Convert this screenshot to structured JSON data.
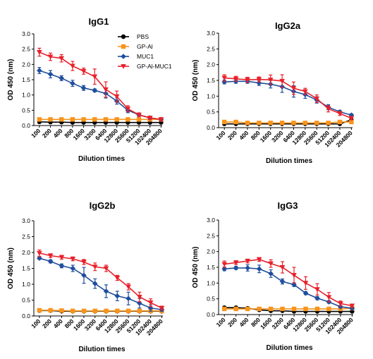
{
  "legend": {
    "entries": [
      {
        "label": "PBS",
        "color": "#000000",
        "marker": "circle"
      },
      {
        "label": "GP-Al",
        "color": "#f7941d",
        "marker": "square"
      },
      {
        "label": "MUC1",
        "color": "#1f4e9c",
        "marker": "diamond"
      },
      {
        "label": "GP-Al-MUC1",
        "color": "#e8202a",
        "marker": "triangle-down"
      }
    ]
  },
  "chart_data": [
    {
      "type": "line",
      "title": "IgG1",
      "xlabel": "Dilution times",
      "ylabel": "OD 450 (nm)",
      "ylim": [
        0,
        3.0
      ],
      "yticks": [
        "0.0",
        "0.5",
        "1.0",
        "1.5",
        "2.0",
        "2.5",
        "3.0"
      ],
      "categories": [
        "100",
        "200",
        "400",
        "800",
        "1600",
        "3200",
        "6400",
        "12800",
        "25600",
        "51200",
        "102400",
        "204800"
      ],
      "legend_position": "top-right",
      "series": [
        {
          "name": "PBS",
          "color": "#000000",
          "marker": "circle",
          "values": [
            0.12,
            0.11,
            0.11,
            0.1,
            0.1,
            0.1,
            0.1,
            0.1,
            0.1,
            0.1,
            0.1,
            0.1
          ],
          "errors": [
            0.02,
            0.02,
            0.02,
            0.02,
            0.02,
            0.02,
            0.02,
            0.02,
            0.02,
            0.02,
            0.02,
            0.02
          ]
        },
        {
          "name": "GP-Al",
          "color": "#f7941d",
          "marker": "square",
          "values": [
            0.2,
            0.2,
            0.2,
            0.2,
            0.2,
            0.2,
            0.2,
            0.2,
            0.2,
            0.2,
            0.2,
            0.2
          ],
          "errors": [
            0.03,
            0.03,
            0.03,
            0.03,
            0.03,
            0.03,
            0.03,
            0.03,
            0.03,
            0.03,
            0.03,
            0.03
          ]
        },
        {
          "name": "MUC1",
          "color": "#1f4e9c",
          "marker": "diamond",
          "values": [
            1.8,
            1.68,
            1.55,
            1.38,
            1.23,
            1.15,
            1.05,
            0.8,
            0.5,
            0.35,
            0.25,
            0.2
          ],
          "errors": [
            0.1,
            0.12,
            0.08,
            0.1,
            0.08,
            0.05,
            0.15,
            0.1,
            0.08,
            0.06,
            0.05,
            0.04
          ]
        },
        {
          "name": "GP-Al-MUC1",
          "color": "#e8202a",
          "marker": "triangle-down",
          "values": [
            2.4,
            2.25,
            2.2,
            1.95,
            1.78,
            1.6,
            1.18,
            0.95,
            0.55,
            0.35,
            0.25,
            0.2
          ],
          "errors": [
            0.13,
            0.12,
            0.12,
            0.15,
            0.1,
            0.25,
            0.25,
            0.18,
            0.1,
            0.06,
            0.05,
            0.04
          ]
        }
      ]
    },
    {
      "type": "line",
      "title": "IgG2a",
      "xlabel": "Dilution times",
      "ylabel": "OD 450 (nm)",
      "ylim": [
        0,
        3.0
      ],
      "yticks": [
        "0.0",
        "0.5",
        "1.0",
        "1.5",
        "2.0",
        "2.5",
        "3.0"
      ],
      "categories": [
        "100",
        "200",
        "400",
        "800",
        "1600",
        "3200",
        "6400",
        "12800",
        "25600",
        "51200",
        "102400",
        "204800"
      ],
      "series": [
        {
          "name": "PBS",
          "color": "#000000",
          "marker": "circle",
          "values": [
            0.12,
            0.12,
            0.12,
            0.12,
            0.12,
            0.12,
            0.12,
            0.12,
            0.12,
            0.12,
            0.12,
            0.25
          ],
          "errors": [
            0.02,
            0.02,
            0.02,
            0.02,
            0.02,
            0.02,
            0.02,
            0.02,
            0.02,
            0.02,
            0.02,
            0.03
          ]
        },
        {
          "name": "GP-Al",
          "color": "#f7941d",
          "marker": "square",
          "values": [
            0.18,
            0.18,
            0.15,
            0.15,
            0.15,
            0.15,
            0.15,
            0.15,
            0.15,
            0.15,
            0.18,
            0.18
          ],
          "errors": [
            0.04,
            0.04,
            0.04,
            0.04,
            0.04,
            0.04,
            0.04,
            0.04,
            0.04,
            0.04,
            0.04,
            0.04
          ]
        },
        {
          "name": "MUC1",
          "color": "#1f4e9c",
          "marker": "diamond",
          "values": [
            1.45,
            1.47,
            1.47,
            1.42,
            1.38,
            1.3,
            1.15,
            1.05,
            0.88,
            0.65,
            0.5,
            0.4
          ],
          "errors": [
            0.06,
            0.06,
            0.06,
            0.08,
            0.12,
            0.18,
            0.18,
            0.12,
            0.1,
            0.08,
            0.05,
            0.04
          ]
        },
        {
          "name": "GP-Al-MUC1",
          "color": "#e8202a",
          "marker": "triangle-down",
          "values": [
            1.58,
            1.55,
            1.52,
            1.53,
            1.52,
            1.48,
            1.25,
            1.15,
            0.92,
            0.6,
            0.45,
            0.3
          ],
          "errors": [
            0.1,
            0.08,
            0.08,
            0.08,
            0.15,
            0.2,
            0.2,
            0.1,
            0.12,
            0.1,
            0.06,
            0.05
          ]
        }
      ]
    },
    {
      "type": "line",
      "title": "IgG2b",
      "xlabel": "Dilution times",
      "ylabel": "OD 450 (nm)",
      "ylim": [
        0,
        3.0
      ],
      "yticks": [
        "0.0",
        "0.5",
        "1.0",
        "1.5",
        "2.0",
        "2.5",
        "3.0"
      ],
      "categories": [
        "100",
        "200",
        "400",
        "800",
        "1600",
        "3200",
        "6400",
        "12800",
        "25600",
        "51200",
        "102400",
        "204800"
      ],
      "series": [
        {
          "name": "PBS",
          "color": "#000000",
          "marker": "circle",
          "values": [
            0.17,
            0.17,
            0.15,
            0.15,
            0.15,
            0.15,
            0.15,
            0.15,
            0.15,
            0.15,
            0.15,
            0.15
          ],
          "errors": [
            0.02,
            0.02,
            0.02,
            0.02,
            0.02,
            0.02,
            0.02,
            0.02,
            0.02,
            0.02,
            0.02,
            0.02
          ]
        },
        {
          "name": "GP-Al",
          "color": "#f7941d",
          "marker": "square",
          "values": [
            0.18,
            0.18,
            0.17,
            0.16,
            0.16,
            0.16,
            0.16,
            0.16,
            0.16,
            0.16,
            0.16,
            0.16
          ],
          "errors": [
            0.03,
            0.03,
            0.03,
            0.03,
            0.03,
            0.03,
            0.03,
            0.03,
            0.03,
            0.03,
            0.03,
            0.03
          ]
        },
        {
          "name": "MUC1",
          "color": "#1f4e9c",
          "marker": "diamond",
          "values": [
            1.82,
            1.72,
            1.58,
            1.5,
            1.28,
            1.02,
            0.78,
            0.63,
            0.55,
            0.4,
            0.25,
            0.2
          ],
          "errors": [
            0.04,
            0.05,
            0.06,
            0.1,
            0.25,
            0.15,
            0.2,
            0.15,
            0.2,
            0.15,
            0.1,
            0.05
          ]
        },
        {
          "name": "GP-Al-MUC1",
          "color": "#e8202a",
          "marker": "triangle-down",
          "values": [
            1.98,
            1.9,
            1.85,
            1.8,
            1.7,
            1.55,
            1.5,
            1.2,
            0.92,
            0.6,
            0.42,
            0.25
          ],
          "errors": [
            0.1,
            0.06,
            0.06,
            0.06,
            0.08,
            0.12,
            0.1,
            0.08,
            0.1,
            0.15,
            0.12,
            0.06
          ]
        }
      ]
    },
    {
      "type": "line",
      "title": "IgG3",
      "xlabel": "Dilution times",
      "ylabel": "OD 450 (nm)",
      "ylim": [
        0,
        3.0
      ],
      "yticks": [
        "0.0",
        "0.5",
        "1.0",
        "1.5",
        "2.0",
        "2.5",
        "3.0"
      ],
      "categories": [
        "100",
        "200",
        "400",
        "800",
        "1600",
        "3200",
        "6400",
        "12800",
        "25600",
        "51200",
        "102400",
        "204800"
      ],
      "series": [
        {
          "name": "PBS",
          "color": "#000000",
          "marker": "circle",
          "values": [
            0.22,
            0.22,
            0.2,
            0.15,
            0.12,
            0.12,
            0.1,
            0.1,
            0.1,
            0.1,
            0.1,
            0.1
          ],
          "errors": [
            0.04,
            0.04,
            0.04,
            0.03,
            0.03,
            0.02,
            0.02,
            0.02,
            0.02,
            0.02,
            0.02,
            0.02
          ]
        },
        {
          "name": "GP-Al",
          "color": "#f7941d",
          "marker": "square",
          "values": [
            0.18,
            0.18,
            0.18,
            0.18,
            0.18,
            0.18,
            0.18,
            0.18,
            0.18,
            0.18,
            0.18,
            0.2
          ],
          "errors": [
            0.03,
            0.03,
            0.03,
            0.03,
            0.03,
            0.03,
            0.03,
            0.03,
            0.03,
            0.03,
            0.03,
            0.03
          ]
        },
        {
          "name": "MUC1",
          "color": "#1f4e9c",
          "marker": "diamond",
          "values": [
            1.45,
            1.48,
            1.48,
            1.45,
            1.3,
            1.05,
            0.95,
            0.68,
            0.52,
            0.4,
            0.25,
            0.2
          ],
          "errors": [
            0.06,
            0.05,
            0.1,
            0.12,
            0.12,
            0.08,
            0.06,
            0.05,
            0.05,
            0.04,
            0.04,
            0.04
          ]
        },
        {
          "name": "GP-Al-MUC1",
          "color": "#e8202a",
          "marker": "triangle-down",
          "values": [
            1.6,
            1.65,
            1.7,
            1.75,
            1.62,
            1.5,
            1.25,
            1.0,
            0.8,
            0.55,
            0.35,
            0.28
          ],
          "errors": [
            0.1,
            0.06,
            0.06,
            0.06,
            0.12,
            0.18,
            0.25,
            0.2,
            0.18,
            0.15,
            0.08,
            0.05
          ]
        }
      ]
    }
  ]
}
